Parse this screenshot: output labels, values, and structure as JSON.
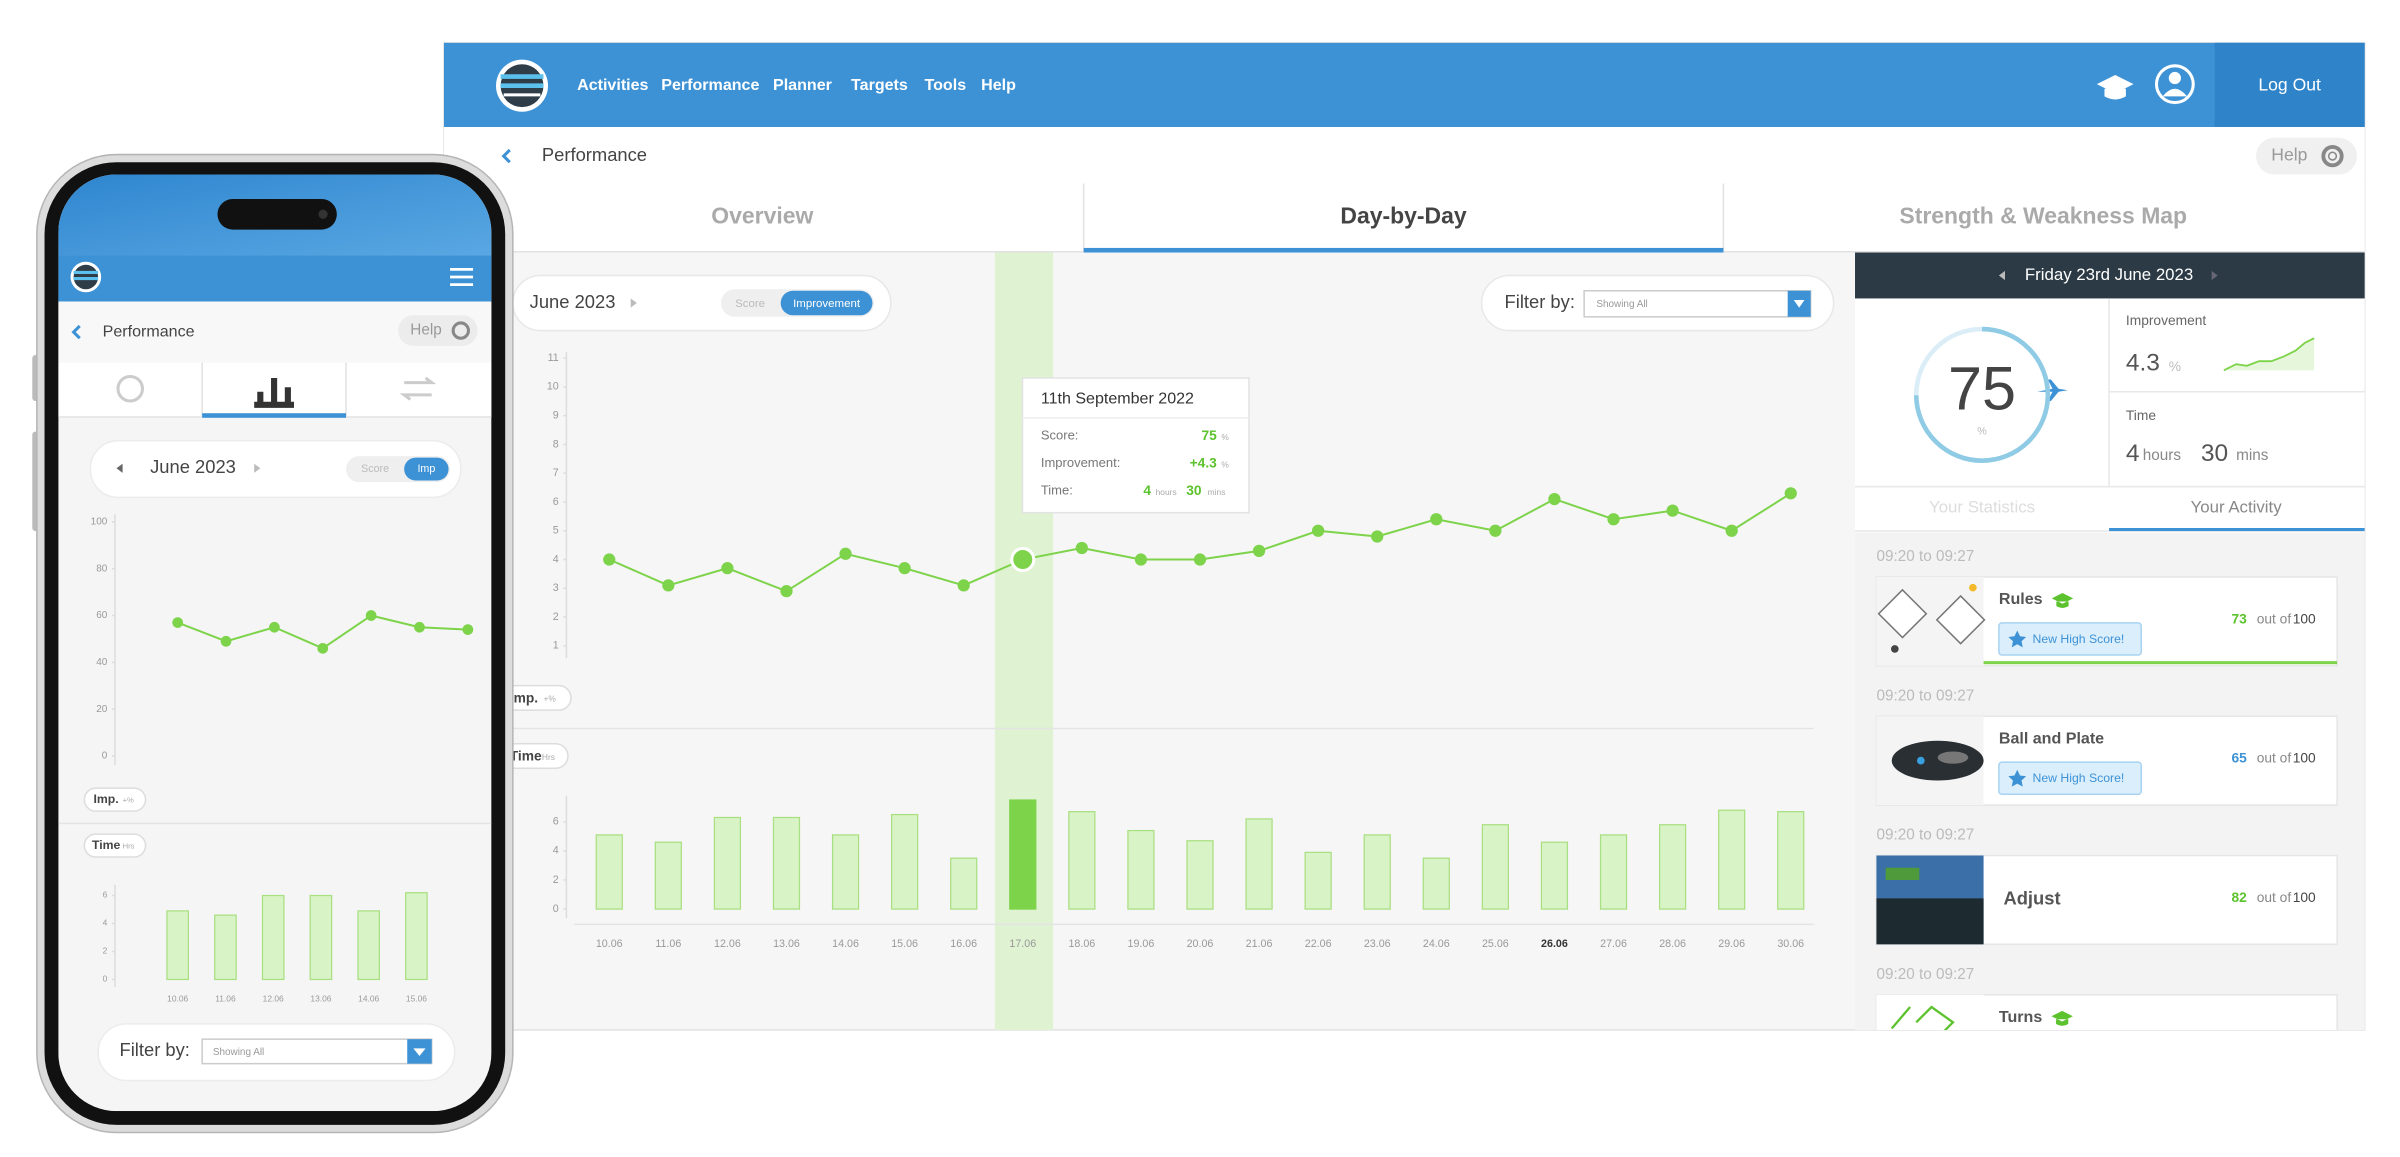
{
  "desktop": {
    "nav": [
      "Activities",
      "Performance",
      "Planner",
      "Targets",
      "Tools",
      "Help"
    ],
    "logout": "Log Out",
    "breadcrumb": "Performance",
    "help": "Help",
    "tabs": [
      "Overview",
      "Day-by-Day",
      "Strength & Weakness Map"
    ],
    "active_tab": 1,
    "month": "June 2023",
    "toggle": [
      "Score",
      "Improvement"
    ],
    "filter_label": "Filter by:",
    "filter_value": "Showing All",
    "imp_tag": [
      "Imp.",
      "+%"
    ],
    "time_tag": [
      "Time",
      "Hrs"
    ],
    "tooltip": {
      "date": "11th September 2022",
      "score_label": "Score:",
      "score": "75",
      "score_unit": "%",
      "improvement_label": "Improvement:",
      "improvement": "+4.3",
      "improvement_unit": "%",
      "time_label": "Time:",
      "hours": "4",
      "hours_unit": "hours",
      "minutes": "30",
      "minutes_unit": "mins"
    }
  },
  "panel": {
    "date": "Friday 23rd June 2023",
    "score": 75,
    "score_unit": "%",
    "improvement_label": "Improvement",
    "improvement": "4.3",
    "improvement_unit": "%",
    "time_label": "Time",
    "hours": "4",
    "hours_unit": "hours",
    "minutes": "30",
    "minutes_unit": "mins",
    "tabs": [
      "Your Statistics",
      "Your Activity"
    ],
    "active_tab": 1,
    "activities": [
      {
        "time": "09:20 to 09:27",
        "name": "Rules",
        "grad": true,
        "badge": "New High Score!",
        "score": "73",
        "score_color": "#5cc22d",
        "out_of": "out of",
        "max": "100"
      },
      {
        "time": "09:20 to 09:27",
        "name": "Ball and Plate",
        "grad": false,
        "badge": "New High Score!",
        "score": "65",
        "score_color": "#3d92d6",
        "out_of": "out of",
        "max": "100"
      },
      {
        "time": "09:20 to 09:27",
        "name": "Adjust",
        "grad": false,
        "score": "82",
        "score_color": "#5cc22d",
        "out_of": "out of",
        "max": "100"
      },
      {
        "time": "09:20 to 09:27",
        "name": "Turns",
        "grad": true
      }
    ]
  },
  "phone": {
    "title": "Performance",
    "help": "Help",
    "month": "June 2023",
    "toggle": [
      "Score",
      "Imp"
    ],
    "imp_tag": [
      "Imp.",
      "+%"
    ],
    "time_tag": [
      "Time",
      "Hrs"
    ],
    "filter_label": "Filter by:",
    "filter_value": "Showing All"
  },
  "chart_data": [
    {
      "type": "line",
      "values": [
        4.0,
        3.1,
        3.7,
        2.9,
        4.2,
        3.7,
        3.1,
        4.0,
        4.4,
        4.0,
        4.0,
        4.3,
        5.0,
        4.8,
        5.4,
        5.0,
        6.1,
        5.4,
        5.7,
        5.0,
        6.3
      ],
      "ylim": [
        1,
        11
      ],
      "yticks": [
        1,
        2,
        3,
        4,
        5,
        6,
        7,
        8,
        9,
        10,
        11
      ],
      "color": "#7dd34a",
      "highlight_index": 7
    },
    {
      "type": "bar",
      "categories": [
        "10.06",
        "11.06",
        "12.06",
        "13.06",
        "14.06",
        "15.06",
        "16.06",
        "17.06",
        "18.06",
        "19.06",
        "20.06",
        "21.06",
        "22.06",
        "23.06",
        "24.06",
        "25.06",
        "26.06",
        "27.06",
        "28.06",
        "29.06",
        "30.06"
      ],
      "values": [
        5.1,
        4.6,
        6.3,
        6.3,
        5.1,
        6.5,
        3.5,
        7.5,
        6.7,
        5.4,
        4.7,
        6.2,
        3.9,
        5.1,
        3.5,
        5.8,
        4.6,
        5.1,
        5.8,
        6.8,
        6.7
      ],
      "ylim": [
        0,
        8
      ],
      "yticks": [
        0,
        2,
        4,
        6
      ],
      "color": "#d8f3c5",
      "highlight_index": 7,
      "highlight_color": "#7dd34a",
      "bold_index": 16
    },
    {
      "type": "line",
      "values": [
        57,
        49,
        55,
        46,
        60,
        55,
        54
      ],
      "ylim": [
        0,
        100
      ],
      "yticks": [
        0,
        20,
        40,
        60,
        80,
        100
      ],
      "color": "#7dd34a"
    },
    {
      "type": "bar",
      "categories": [
        "10.06",
        "11.06",
        "12.06",
        "13.06",
        "14.06",
        "15.06"
      ],
      "values": [
        4.9,
        4.6,
        6.0,
        6.0,
        4.9,
        6.2
      ],
      "ylim": [
        0,
        7
      ],
      "yticks": [
        0,
        2,
        4,
        6
      ],
      "color": "#d8f3c5"
    }
  ]
}
